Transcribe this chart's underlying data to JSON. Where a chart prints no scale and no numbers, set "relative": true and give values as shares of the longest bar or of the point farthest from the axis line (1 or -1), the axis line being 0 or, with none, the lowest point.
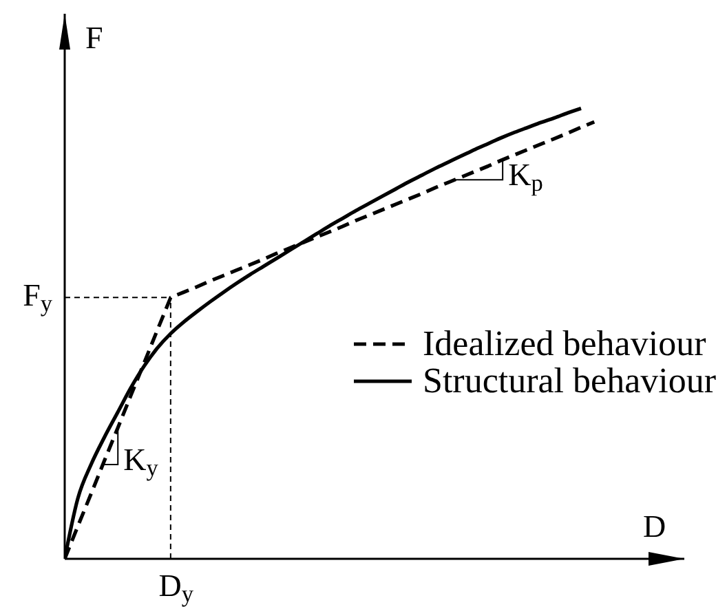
{
  "chart_data": {
    "type": "line",
    "relative": true,
    "xlabel": "D",
    "ylabel": "F",
    "legend": "right",
    "marker": "none",
    "categories": [
      null,
      null,
      null,
      null,
      null,
      null,
      null,
      null,
      null,
      null,
      null,
      null,
      null,
      null,
      null,
      null,
      null,
      null,
      null,
      null,
      null,
      null,
      null,
      null,
      null,
      null,
      null,
      null,
      null,
      null,
      null,
      null,
      null,
      null,
      null,
      null,
      null,
      null,
      null,
      null,
      null
    ],
    "series": [
      {
        "name": "Idealized behaviour",
        "color": "#000000",
        "line_style": "dashed",
        "values": [
          0,
          0.073,
          0.145,
          0.218,
          0.29,
          0.363,
          0.435,
          0.508,
          0.58,
          0.592,
          0.604,
          0.617,
          0.629,
          0.641,
          0.653,
          0.665,
          0.678,
          0.69,
          0.702,
          0.714,
          0.726,
          0.738,
          0.751,
          0.763,
          0.775,
          0.787,
          0.799,
          0.811,
          0.824,
          0.836,
          0.848,
          0.86,
          0.872,
          0.885,
          0.897,
          0.909,
          0.921,
          0.933,
          0.945,
          0.958,
          0.97
        ]
      },
      {
        "name": "Structural behaviour",
        "color": "#000000",
        "line_style": "solid",
        "values": [
          0,
          0.135,
          0.21,
          0.27,
          0.325,
          0.38,
          0.428,
          0.468,
          0.5,
          0.526,
          0.549,
          0.571,
          0.592,
          0.612,
          0.631,
          0.649,
          0.667,
          0.685,
          0.703,
          0.721,
          0.739,
          0.756,
          0.773,
          0.789,
          0.805,
          0.821,
          0.837,
          0.852,
          0.867,
          0.881,
          0.895,
          0.909,
          0.922,
          0.935,
          0.947,
          0.958,
          0.969,
          0.979,
          0.99,
          1,
          null
        ]
      }
    ],
    "ref_lines": [
      {
        "axis": "y",
        "value": 0.58,
        "label": "F$_{y}$",
        "line_style": "dashed",
        "color": "#000000"
      },
      {
        "axis": "x",
        "value": "D$_{y}$",
        "line_style": "dashed",
        "color": "#000000"
      }
    ],
    "annotations": [
      "K$_{y}$",
      "K$_{p}$"
    ]
  }
}
